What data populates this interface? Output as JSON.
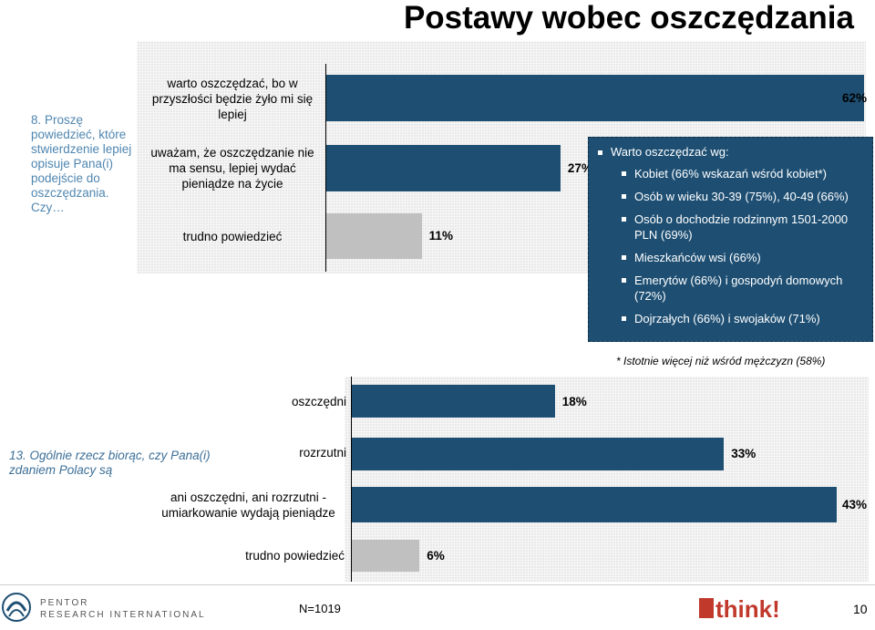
{
  "title": "Postawy wobec oszczędzania",
  "question1": "8. Proszę powiedzieć, które stwierdzenie lepiej opisuje Pana(i) podejście do oszczędzania. Czy…",
  "question2": "13. Ogólnie rzecz biorąc, czy Pana(i) zdaniem Polacy są",
  "callout": {
    "head": "Warto oszczędzać wg:",
    "items": [
      "Kobiet (66% wskazań wśród kobiet*)",
      "Osób w wieku 30-39 (75%), 40-49 (66%)",
      "Osób o dochodzie rodzinnym 1501-2000 PLN (69%)",
      "Mieszkańców wsi (66%)",
      "Emerytów (66%) i gospodyń domowych (72%)",
      "Dojrzałych (66%) i swojaków (71%)"
    ]
  },
  "footnote": "* Istotnie więcej niż wśród mężczyzn (58%)",
  "footer": {
    "pentor_line1": "PENTOR",
    "pentor_line2": "RESEARCH INTERNATIONAL",
    "n": "N=1019",
    "brand": "think!",
    "page": "10"
  },
  "colors": {
    "primary": "#1e4f73",
    "grey": "#c0c0c0"
  },
  "chart_data": [
    {
      "type": "bar",
      "orientation": "horizontal",
      "categories": [
        "warto oszczędzać, bo w przyszłości będzie żyło mi się lepiej",
        "uważam, że oszczędzanie nie ma sensu, lepiej wydać pieniądze na życie",
        "trudno powiedzieć"
      ],
      "values": [
        62,
        27,
        11
      ],
      "value_labels": [
        "62%",
        "27%",
        "11%"
      ],
      "unit": "%",
      "bar_colors": [
        "#1e4f73",
        "#1e4f73",
        "#c0c0c0"
      ],
      "xlim": [
        0,
        62
      ]
    },
    {
      "type": "bar",
      "orientation": "horizontal",
      "categories": [
        "oszczędni",
        "rozrzutni",
        "ani oszczędni, ani rozrzutni - umiarkowanie wydają pieniądze",
        "trudno powiedzieć"
      ],
      "values": [
        18,
        33,
        43,
        6
      ],
      "value_labels": [
        "18%",
        "33%",
        "43%",
        "6%"
      ],
      "unit": "%",
      "bar_colors": [
        "#1e4f73",
        "#1e4f73",
        "#1e4f73",
        "#c0c0c0"
      ],
      "xlim": [
        0,
        43
      ]
    }
  ]
}
